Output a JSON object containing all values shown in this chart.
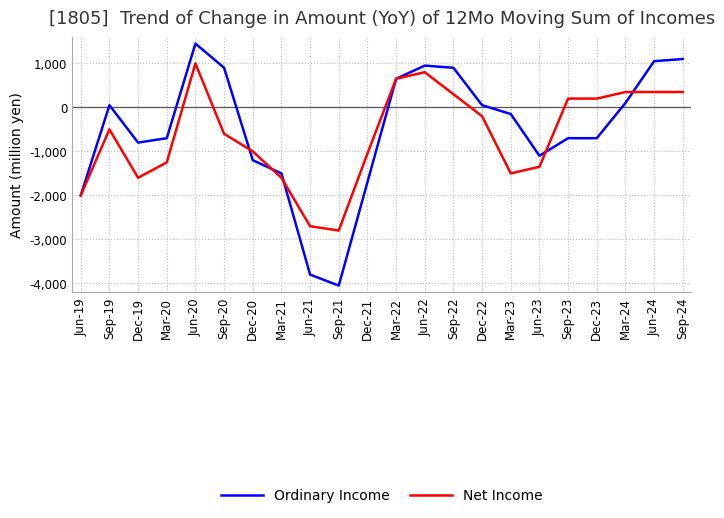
{
  "title": "[1805]  Trend of Change in Amount (YoY) of 12Mo Moving Sum of Incomes",
  "ylabel": "Amount (million yen)",
  "ylim": [
    -4200,
    1600
  ],
  "yticks": [
    -4000,
    -3000,
    -2000,
    -1000,
    0,
    1000
  ],
  "dates": [
    "Jun-19",
    "Sep-19",
    "Dec-19",
    "Mar-20",
    "Jun-20",
    "Sep-20",
    "Dec-20",
    "Mar-21",
    "Jun-21",
    "Sep-21",
    "Dec-21",
    "Mar-22",
    "Jun-22",
    "Sep-22",
    "Dec-22",
    "Mar-23",
    "Jun-23",
    "Sep-23",
    "Dec-23",
    "Mar-24",
    "Jun-24",
    "Sep-24"
  ],
  "ordinary_income": [
    -2000,
    50,
    -800,
    -700,
    1450,
    900,
    -1200,
    -1500,
    -3800,
    -4050,
    -1700,
    650,
    950,
    900,
    50,
    -150,
    -1100,
    -700,
    -700,
    100,
    1050,
    1100
  ],
  "net_income": [
    -2000,
    -500,
    -1600,
    -1250,
    1000,
    -600,
    -1000,
    -1600,
    -2700,
    -2800,
    -1050,
    650,
    800,
    300,
    -200,
    -1500,
    -1350,
    200,
    200,
    350,
    350,
    350
  ],
  "ordinary_income_color": "#0000ff",
  "net_income_color": "#ff0000",
  "line_width": 1.8,
  "background_color": "#ffffff",
  "grid_color": "#bbbbbb",
  "title_fontsize": 13,
  "label_fontsize": 10,
  "tick_fontsize": 8.5
}
